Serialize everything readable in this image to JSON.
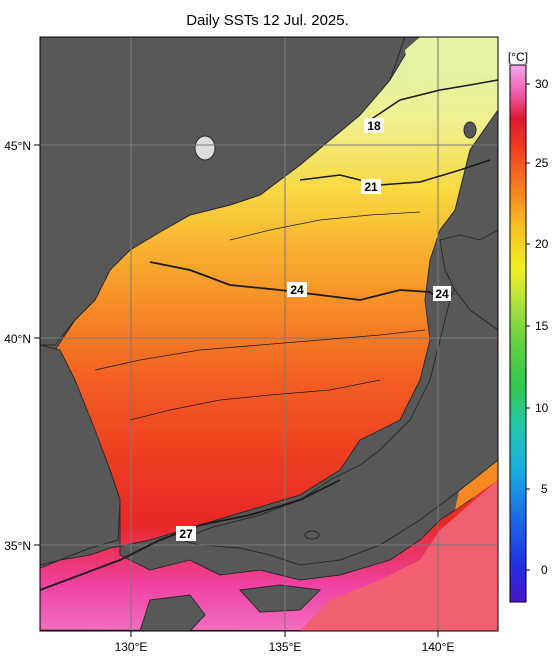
{
  "title": "Daily SSTs 12 Jul. 2025.",
  "axes": {
    "lat_labels": [
      "45°N",
      "40°N",
      "35°N"
    ],
    "lon_labels": [
      "130°E",
      "135°E",
      "140°E"
    ]
  },
  "contour_labels": [
    "18",
    "21",
    "24",
    "24",
    "27"
  ],
  "colorbar": {
    "unit": "[°C]",
    "tick_labels": [
      "30",
      "25",
      "20",
      "15",
      "10",
      "5",
      "0"
    ],
    "range": [
      -2,
      32
    ]
  },
  "colors": {
    "land": "#585858",
    "coast": "#2b2b2b",
    "grid": "#7a7a7a",
    "sea_warm": "#ef3a22",
    "sea_orange": "#f57d1e",
    "sea_yellow": "#f6c82a",
    "sea_pale": "#f3f08a",
    "sea_green": "#c8f0a0",
    "sea_hot": "#f27bc0"
  }
}
